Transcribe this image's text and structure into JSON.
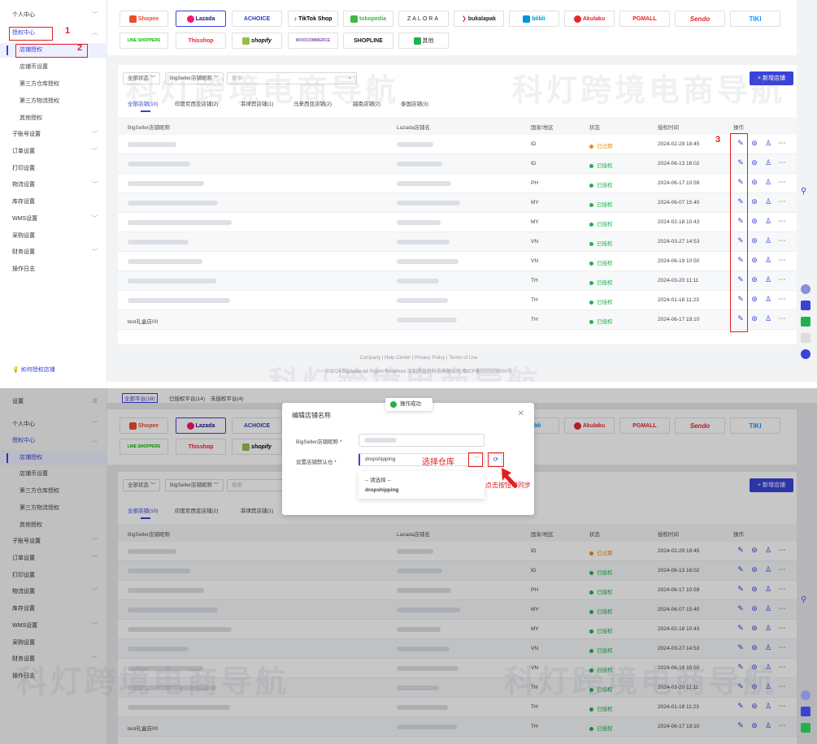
{
  "sidebar": {
    "items": [
      "个人中心",
      "授权中心",
      "店铺授权",
      "店铺币设置",
      "第三方仓库授权",
      "第三方物流授权",
      "其他授权",
      "子账号设置",
      "订单设置",
      "打印设置",
      "物流设置",
      "库存设置",
      "WMS设置",
      "采购设置",
      "财务设置",
      "操作日志"
    ],
    "help": "如何授权店铺",
    "settings_label": "设置"
  },
  "platforms_row1": [
    "Shopee",
    "Lazada",
    "ACHOICE",
    "TikTok Shop",
    "tokopedia",
    "ZALORA",
    "bukalapak",
    "blibli",
    "Akulaku",
    "PGMALL",
    "Sendo",
    "TIKI"
  ],
  "platforms_row2": [
    "LINE SHOPPERS",
    "Thisshop",
    "shopify",
    "WOOCOMMERCE",
    "SHOPLINE",
    "其他"
  ],
  "bottom_tabs": [
    "全部平台(18)",
    "已授权平台(14)",
    "未授权平台(4)"
  ],
  "toolbar": {
    "status_filter": "全部状态",
    "name_filter": "BigSeller店铺昵称",
    "search_placeholder": "搜索",
    "add_button": "+ 新增店铺"
  },
  "tabs": [
    "全部店铺(10)",
    "印度尼西亚店铺(2)",
    "菲律宾店铺(1)",
    "马来西亚店铺(2)",
    "越南店铺(2)",
    "泰国店铺(3)"
  ],
  "columns": [
    "BigSeller店铺昵称",
    "Lazada店铺名",
    "国家/地区",
    "状态",
    "授权时间"
  ],
  "ops_label": "操作",
  "rows": [
    {
      "name": "",
      "country": "ID",
      "status": "已过期",
      "color": "#f08c00",
      "time": "2024-02-29 18:45"
    },
    {
      "name": "",
      "country": "ID",
      "status": "已授权",
      "color": "#22b14c",
      "time": "2024-06-13 16:02"
    },
    {
      "name": "",
      "country": "PH",
      "status": "已授权",
      "color": "#22b14c",
      "time": "2024-06-17 10:59"
    },
    {
      "name": "",
      "country": "MY",
      "status": "已授权",
      "color": "#22b14c",
      "time": "2024-06-07 15:40"
    },
    {
      "name": "",
      "country": "MY",
      "status": "已授权",
      "color": "#22b14c",
      "time": "2024-02-18 10:43"
    },
    {
      "name": "",
      "country": "VN",
      "status": "已授权",
      "color": "#22b14c",
      "time": "2024-03-27 14:53"
    },
    {
      "name": "",
      "country": "VN",
      "status": "已授权",
      "color": "#22b14c",
      "time": "2024-06-19 10:50"
    },
    {
      "name": "",
      "country": "TH",
      "status": "已授权",
      "color": "#22b14c",
      "time": "2024-03-20 11:11"
    },
    {
      "name": "",
      "country": "TH",
      "status": "已授权",
      "color": "#22b14c",
      "time": "2024-01-18 11:23"
    },
    {
      "name": "test礼盒店00",
      "country": "TH",
      "status": "已授权",
      "color": "#22b14c",
      "time": "2024-06-17 19:10"
    }
  ],
  "footer": {
    "links": "Company  |  Help Center  |  Privacy Policy  |  Terms of Use",
    "copyright": "© 2024 BigSeller All Rights Reserved  深圳市凯特科技有限公司  粤ICP备2020100000号"
  },
  "annotations": {
    "n1": "1",
    "n2": "2",
    "n3": "3",
    "choose_warehouse": "选择仓库",
    "sync_hint": "点击按钮可同步"
  },
  "watermark": "科灯跨境电商导航",
  "modal": {
    "title": "编辑店铺名称",
    "field1_label": "BigSeller店铺昵称 *",
    "field2_label": "设置店铺默认仓 *",
    "warehouse_value": "dropshipping",
    "option_placeholder": "-- 请选择 --",
    "option1": "dropshipping",
    "toast": "操作成功"
  },
  "colors": {
    "accent": "#3a43d8",
    "expired": "#f08c00",
    "authorized": "#22b14c",
    "annotation": "#e02020"
  }
}
